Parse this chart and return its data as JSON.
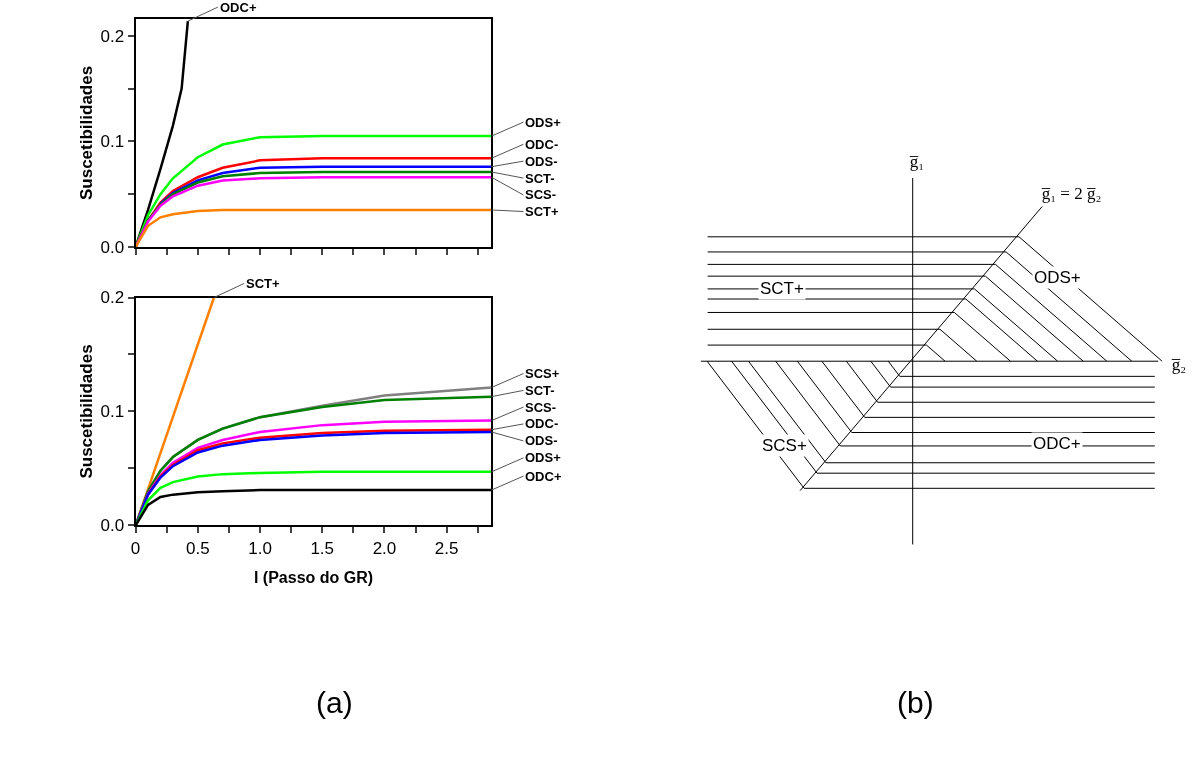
{
  "chart_data": [
    {
      "type": "line",
      "ylabel": "Suscetibilidades",
      "xlim": [
        0,
        2.86
      ],
      "ylim": [
        0,
        0.216
      ],
      "xticks": [
        0,
        {
          "value": 0.25,
          "label": null
        },
        0.5,
        {
          "value": 0.75,
          "label": null
        },
        1.0,
        {
          "value": 1.25,
          "label": null
        },
        1.5,
        {
          "value": 1.75,
          "label": null
        },
        2.0,
        {
          "value": 2.25,
          "label": null
        },
        2.5,
        {
          "value": 2.75,
          "label": null
        }
      ],
      "yticks": [
        {
          "value": 0,
          "label": "0.0"
        },
        {
          "value": 0.05,
          "label": null
        },
        {
          "value": 0.1,
          "label": "0.1"
        },
        {
          "value": 0.15,
          "label": null
        },
        {
          "value": 0.2,
          "label": "0.2"
        }
      ],
      "tick_labels": "y",
      "marker": "none",
      "series": [
        {
          "name": "ODC+",
          "color": "#000000",
          "x": [
            0,
            0.1,
            0.2,
            0.3,
            0.37,
            0.42
          ],
          "values": [
            0,
            0.035,
            0.074,
            0.115,
            0.15,
            0.214
          ]
        },
        {
          "name": "ODS+",
          "color": "#00ff00",
          "x": [
            0,
            0.1,
            0.2,
            0.3,
            0.5,
            0.7,
            1.0,
            1.5,
            2.0,
            2.86
          ],
          "values": [
            0,
            0.03,
            0.05,
            0.065,
            0.085,
            0.097,
            0.104,
            0.105,
            0.105,
            0.105
          ]
        },
        {
          "name": "ODC-",
          "color": "#ff0000",
          "x": [
            0,
            0.1,
            0.2,
            0.3,
            0.5,
            0.7,
            1.0,
            1.5,
            2.0,
            2.86
          ],
          "values": [
            0,
            0.025,
            0.042,
            0.053,
            0.066,
            0.075,
            0.082,
            0.084,
            0.084,
            0.084
          ]
        },
        {
          "name": "ODS-",
          "color": "#0000ff",
          "x": [
            0.2,
            0.3,
            0.5,
            0.7,
            1.0,
            1.5,
            2.0,
            2.86
          ],
          "values": [
            0.041,
            0.051,
            0.063,
            0.07,
            0.075,
            0.076,
            0.076,
            0.076
          ]
        },
        {
          "name": "SCT-",
          "color": "#008000",
          "x": [
            0,
            0.1,
            0.2,
            0.3,
            0.5,
            0.7,
            1.0,
            1.5,
            2.0,
            2.86
          ],
          "values": [
            0,
            0.025,
            0.04,
            0.05,
            0.061,
            0.067,
            0.07,
            0.071,
            0.071,
            0.071
          ]
        },
        {
          "name": "SCS-",
          "color": "#ff00ff",
          "x": [
            0,
            0.1,
            0.2,
            0.3,
            0.5,
            0.7,
            1.0,
            1.5,
            2.0,
            2.86
          ],
          "values": [
            0,
            0.024,
            0.039,
            0.048,
            0.058,
            0.063,
            0.065,
            0.066,
            0.066,
            0.066
          ]
        },
        {
          "name": "SCT+",
          "color": "#ff8000",
          "x": [
            0,
            0.1,
            0.2,
            0.3,
            0.5,
            0.7,
            1.0,
            1.5,
            2.0,
            2.86
          ],
          "values": [
            0,
            0.02,
            0.028,
            0.031,
            0.034,
            0.035,
            0.035,
            0.035,
            0.035,
            0.035
          ]
        }
      ]
    },
    {
      "type": "line",
      "ylabel": "Suscetibilidades",
      "xlabel": "l (Passo do GR)",
      "xlim": [
        0,
        2.86
      ],
      "ylim": [
        0,
        0.2
      ],
      "xticks": [
        0,
        {
          "value": 0.25,
          "label": null
        },
        0.5,
        {
          "value": 0.75,
          "label": null
        },
        {
          "value": 1,
          "label": "1.0"
        },
        {
          "value": 1.25,
          "label": null
        },
        1.5,
        {
          "value": 1.75,
          "label": null
        },
        {
          "value": 2,
          "label": "2.0"
        },
        {
          "value": 2.25,
          "label": null
        },
        2.5,
        {
          "value": 2.75,
          "label": null
        }
      ],
      "yticks": [
        {
          "value": 0,
          "label": "0.0"
        },
        {
          "value": 0.05,
          "label": null
        },
        {
          "value": 0.1,
          "label": "0.1"
        },
        {
          "value": 0.15,
          "label": null
        },
        {
          "value": 0.2,
          "label": "0.2"
        }
      ],
      "marker": "none",
      "annotations": [
        "(a)"
      ],
      "series": [
        {
          "name": "SCT+",
          "color": "#ff8000",
          "x": [
            0,
            0.63
          ],
          "values": [
            0,
            0.2
          ]
        },
        {
          "name": "SCS+",
          "color": "#808080",
          "x": [
            0,
            0.1,
            0.2,
            0.3,
            0.5,
            0.7,
            1.0,
            1.5,
            2.0,
            2.86
          ],
          "values": [
            0,
            0.03,
            0.048,
            0.06,
            0.075,
            0.085,
            0.095,
            0.105,
            0.114,
            0.121
          ]
        },
        {
          "name": "SCT-",
          "color": "#008000",
          "x": [
            0,
            0.1,
            0.2,
            0.3,
            0.5,
            0.7,
            1.0,
            1.5,
            2.0,
            2.86
          ],
          "values": [
            0,
            0.03,
            0.048,
            0.06,
            0.075,
            0.085,
            0.095,
            0.104,
            0.11,
            0.113
          ]
        },
        {
          "name": "SCS-",
          "color": "#ff00ff",
          "x": [
            0,
            0.1,
            0.2,
            0.3,
            0.5,
            0.7,
            1.0,
            1.5,
            2.0,
            2.86
          ],
          "values": [
            0,
            0.028,
            0.044,
            0.055,
            0.068,
            0.075,
            0.082,
            0.088,
            0.091,
            0.092
          ]
        },
        {
          "name": "ODC-",
          "color": "#ff0000",
          "x": [
            0,
            0.1,
            0.2,
            0.3,
            0.5,
            0.7,
            1.0,
            1.5,
            2.0,
            2.86
          ],
          "values": [
            0,
            0.027,
            0.043,
            0.053,
            0.066,
            0.072,
            0.077,
            0.081,
            0.083,
            0.084
          ]
        },
        {
          "name": "ODS-",
          "color": "#0000ff",
          "x": [
            0,
            0.1,
            0.2,
            0.3,
            0.5,
            0.7,
            1.0,
            1.5,
            2.0,
            2.86
          ],
          "values": [
            0,
            0.027,
            0.042,
            0.052,
            0.064,
            0.07,
            0.075,
            0.079,
            0.081,
            0.082
          ]
        },
        {
          "name": "ODS+",
          "color": "#00ff00",
          "x": [
            0,
            0.1,
            0.2,
            0.3,
            0.5,
            0.7,
            1.0,
            1.5,
            2.0,
            2.86
          ],
          "values": [
            0,
            0.022,
            0.033,
            0.038,
            0.043,
            0.045,
            0.046,
            0.047,
            0.047,
            0.047
          ]
        },
        {
          "name": "ODC+",
          "color": "#000000",
          "x": [
            0,
            0.1,
            0.2,
            0.3,
            0.5,
            0.7,
            1.0,
            1.5,
            2.0,
            2.86
          ],
          "values": [
            0,
            0.018,
            0.025,
            0.027,
            0.029,
            0.03,
            0.031,
            0.031,
            0.031,
            0.031
          ]
        }
      ]
    },
    {
      "type": "other",
      "annotations": [
        "g̅₁",
        "g̅₁ = 2 g̅₂",
        "g̅₂",
        "SCT+",
        "ODS+",
        "SCS+",
        "ODC+",
        "(b)"
      ]
    }
  ]
}
